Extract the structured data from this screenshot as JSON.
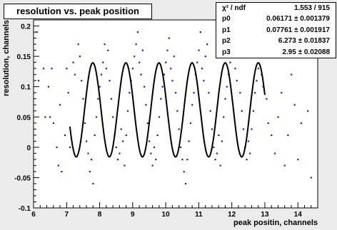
{
  "chart_data": {
    "type": "scatter",
    "title": "resolution vs. peak position",
    "xlabel": "peak positin, channels",
    "ylabel": "resolution, channels",
    "xlim": [
      6,
      14.6
    ],
    "ylim": [
      -0.1,
      0.21
    ],
    "x_ticks": [
      "6",
      "7",
      "8",
      "9",
      "10",
      "11",
      "12",
      "13",
      "14"
    ],
    "y_ticks": [
      "-0.1",
      "-0.05",
      "0",
      "0.05",
      "0.1",
      "0.15",
      "0.2"
    ],
    "grid": false,
    "series": [
      {
        "type": "scatter",
        "color": "#1a1acc",
        "points": [
          [
            6.1,
            0.19
          ],
          [
            6.15,
            0.11
          ],
          [
            6.3,
            0.13
          ],
          [
            6.35,
            0.05
          ],
          [
            6.45,
            0.1
          ],
          [
            6.5,
            0.05
          ],
          [
            6.55,
            0.13
          ],
          [
            6.6,
            0.04
          ],
          [
            6.7,
            0.0
          ],
          [
            6.75,
            -0.03
          ],
          [
            6.8,
            0.07
          ],
          [
            6.85,
            -0.04
          ],
          [
            6.95,
            0.02
          ],
          [
            7.0,
            0.13
          ],
          [
            7.05,
            0.09
          ],
          [
            7.1,
            0.0
          ],
          [
            7.2,
            0.14
          ],
          [
            7.25,
            0.12
          ],
          [
            7.35,
            0.17
          ],
          [
            7.4,
            0.15
          ],
          [
            7.45,
            0.11
          ],
          [
            7.5,
            0.08
          ],
          [
            7.55,
            0.04
          ],
          [
            7.6,
            0.01
          ],
          [
            7.65,
            -0.01
          ],
          [
            7.7,
            -0.04
          ],
          [
            7.75,
            -0.02
          ],
          [
            7.8,
            -0.06
          ],
          [
            7.85,
            0.02
          ],
          [
            7.9,
            0.05
          ],
          [
            7.95,
            0.08
          ],
          [
            8.0,
            0.1
          ],
          [
            8.05,
            0.12
          ],
          [
            8.1,
            0.14
          ],
          [
            8.15,
            0.17
          ],
          [
            8.2,
            0.13
          ],
          [
            8.25,
            0.16
          ],
          [
            8.3,
            0.11
          ],
          [
            8.35,
            0.08
          ],
          [
            8.4,
            0.05
          ],
          [
            8.45,
            0.02
          ],
          [
            8.5,
            0.0
          ],
          [
            8.55,
            -0.02
          ],
          [
            8.6,
            -0.01
          ],
          [
            8.65,
            0.03
          ],
          [
            8.7,
            0.01
          ],
          [
            8.75,
            -0.03
          ],
          [
            8.8,
            0.02
          ],
          [
            8.85,
            0.06
          ],
          [
            8.9,
            0.09
          ],
          [
            8.95,
            0.11
          ],
          [
            9.0,
            0.13
          ],
          [
            9.05,
            0.15
          ],
          [
            9.1,
            0.17
          ],
          [
            9.15,
            0.19
          ],
          [
            9.2,
            0.14
          ],
          [
            9.25,
            0.12
          ],
          [
            9.3,
            0.16
          ],
          [
            9.35,
            0.1
          ],
          [
            9.4,
            0.07
          ],
          [
            9.45,
            0.04
          ],
          [
            9.5,
            0.01
          ],
          [
            9.55,
            -0.01
          ],
          [
            9.6,
            -0.03
          ],
          [
            9.65,
            0.0
          ],
          [
            9.7,
            -0.02
          ],
          [
            9.75,
            0.02
          ],
          [
            9.8,
            0.05
          ],
          [
            9.85,
            0.08
          ],
          [
            9.9,
            0.1
          ],
          [
            9.95,
            0.12
          ],
          [
            10.0,
            0.14
          ],
          [
            10.05,
            0.16
          ],
          [
            10.1,
            0.18
          ],
          [
            10.15,
            0.13
          ],
          [
            10.2,
            0.11
          ],
          [
            10.25,
            0.15
          ],
          [
            10.3,
            0.09
          ],
          [
            10.35,
            0.06
          ],
          [
            10.4,
            0.03
          ],
          [
            10.45,
            0.0
          ],
          [
            10.5,
            -0.02
          ],
          [
            10.55,
            -0.04
          ],
          [
            10.6,
            -0.06
          ],
          [
            10.65,
            -0.02
          ],
          [
            10.7,
            0.01
          ],
          [
            10.75,
            0.04
          ],
          [
            10.8,
            0.07
          ],
          [
            10.85,
            0.09
          ],
          [
            10.9,
            0.12
          ],
          [
            10.95,
            0.14
          ],
          [
            11.0,
            0.16
          ],
          [
            11.05,
            0.19
          ],
          [
            11.1,
            0.13
          ],
          [
            11.15,
            0.11
          ],
          [
            11.2,
            0.15
          ],
          [
            11.25,
            0.17
          ],
          [
            11.3,
            0.09
          ],
          [
            11.35,
            0.06
          ],
          [
            11.4,
            0.03
          ],
          [
            11.45,
            0.0
          ],
          [
            11.5,
            -0.02
          ],
          [
            11.55,
            -0.01
          ],
          [
            11.6,
            0.02
          ],
          [
            11.65,
            -0.03
          ],
          [
            11.7,
            0.01
          ],
          [
            11.75,
            0.05
          ],
          [
            11.8,
            0.08
          ],
          [
            11.85,
            0.1
          ],
          [
            11.9,
            0.12
          ],
          [
            11.95,
            0.14
          ],
          [
            12.0,
            0.16
          ],
          [
            12.05,
            0.18
          ],
          [
            12.1,
            0.13
          ],
          [
            12.15,
            0.11
          ],
          [
            12.2,
            0.15
          ],
          [
            12.25,
            0.09
          ],
          [
            12.3,
            0.06
          ],
          [
            12.35,
            0.03
          ],
          [
            12.4,
            0.0
          ],
          [
            12.45,
            -0.02
          ],
          [
            12.5,
            0.01
          ],
          [
            12.55,
            -0.01
          ],
          [
            12.6,
            0.03
          ],
          [
            12.65,
            0.06
          ],
          [
            12.7,
            0.09
          ],
          [
            12.75,
            0.11
          ],
          [
            12.8,
            0.13
          ],
          [
            12.85,
            0.15
          ],
          [
            12.9,
            0.12
          ],
          [
            12.95,
            0.1
          ],
          [
            13.05,
            0.08
          ],
          [
            13.1,
            0.04
          ],
          [
            13.2,
            0.02
          ],
          [
            13.3,
            -0.01
          ],
          [
            13.4,
            0.05
          ],
          [
            13.5,
            0.09
          ],
          [
            13.6,
            -0.03
          ],
          [
            13.7,
            0.02
          ],
          [
            13.8,
            0.12
          ],
          [
            13.9,
            0.07
          ],
          [
            14.0,
            -0.02
          ],
          [
            14.1,
            0.04
          ],
          [
            14.3,
            0.06
          ],
          [
            14.4,
            -0.05
          ]
        ]
      },
      {
        "type": "fit-line",
        "color": "#000000",
        "x_range": [
          7.1,
          13.0
        ],
        "samples": 300,
        "formula": "p0 + p1*sin(p2*x + p3)"
      }
    ],
    "stats": {
      "rows": [
        {
          "key": "χ² / ndf",
          "value": "1.553 / 915"
        },
        {
          "key": "p0",
          "value": "0.06171 ± 0.001379"
        },
        {
          "key": "p1",
          "value": "0.07761 ± 0.001917"
        },
        {
          "key": "p2",
          "value": "6.273 ± 0.01837"
        },
        {
          "key": "p3",
          "value": "2.95 ± 0.02088"
        }
      ],
      "fit_params": {
        "p0": 0.06171,
        "p1": 0.07761,
        "p2": 6.273,
        "p3": 2.95
      }
    }
  }
}
